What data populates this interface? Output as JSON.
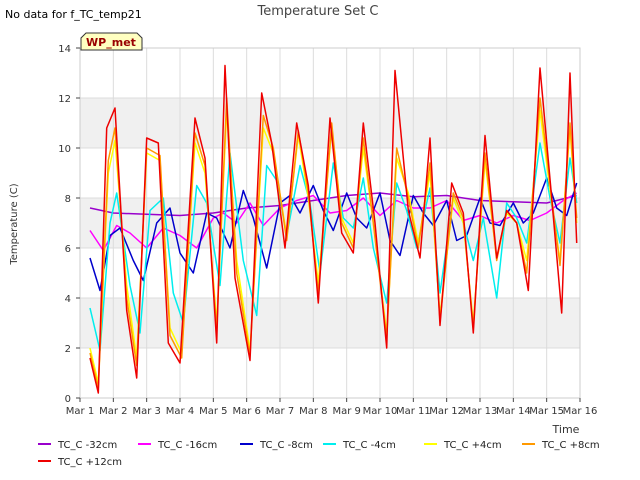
{
  "no_data_note": "No data for f_TC_temp21",
  "site_badge": "WP_met",
  "chart_data": {
    "type": "line",
    "title": "Temperature Set C",
    "xlabel": "Time",
    "ylabel": "Temperature (C)",
    "x_unit": "days since Mar 1",
    "xlim": [
      0,
      15
    ],
    "ylim": [
      0,
      14
    ],
    "x_tick_values": [
      0,
      1,
      2,
      3,
      4,
      5,
      6,
      7,
      8,
      9,
      10,
      11,
      12,
      13,
      14,
      15
    ],
    "x_tick_labels": [
      "Mar 1",
      "Mar 2",
      "Mar 3",
      "Mar 4",
      "Mar 5",
      "Mar 6",
      "Mar 7",
      "Mar 8",
      "Mar 9",
      "Mar 10",
      "Mar 11",
      "Mar 12",
      "Mar 13",
      "Mar 14",
      "Mar 15",
      "Mar 16"
    ],
    "y_tick_values": [
      0,
      2,
      4,
      6,
      8,
      10,
      12,
      14
    ],
    "y_tick_labels": [
      "0",
      "2",
      "4",
      "6",
      "8",
      "10",
      "12",
      "14"
    ],
    "shaded_bands": [
      [
        2,
        4
      ],
      [
        6,
        8
      ],
      [
        10,
        12
      ]
    ],
    "colors": {
      "band": "#f0f0f0",
      "grid": "#dcdcdc",
      "badge_bg": "#ffffc0",
      "badge_text": "#990000"
    },
    "series": [
      {
        "name": "TC_C -32cm",
        "color": "#9900cc",
        "x": [
          0.3,
          1,
          2,
          3,
          4,
          5,
          6,
          7,
          8,
          9,
          10,
          11,
          12,
          13,
          14,
          14.9
        ],
        "y": [
          7.6,
          7.4,
          7.35,
          7.3,
          7.4,
          7.6,
          7.7,
          7.9,
          8.1,
          8.2,
          8.05,
          8.1,
          7.9,
          7.85,
          7.8,
          8.1
        ]
      },
      {
        "name": "TC_C -16cm",
        "color": "#ff00ff",
        "x": [
          0.3,
          0.7,
          1.1,
          1.5,
          2.0,
          2.5,
          3.0,
          3.5,
          4.0,
          4.3,
          4.7,
          5.1,
          5.5,
          6.0,
          6.5,
          7.0,
          7.5,
          8.0,
          8.5,
          9.0,
          9.5,
          10.0,
          10.5,
          11.0,
          11.5,
          12.0,
          12.5,
          13.0,
          13.5,
          14.0,
          14.5,
          14.9
        ],
        "y": [
          6.7,
          5.9,
          6.9,
          6.6,
          6.0,
          6.8,
          6.5,
          6.0,
          7.2,
          7.4,
          7.0,
          7.8,
          6.9,
          7.6,
          7.9,
          8.1,
          7.4,
          7.5,
          8.0,
          7.3,
          7.9,
          7.6,
          7.6,
          7.9,
          7.1,
          7.3,
          7.0,
          7.3,
          7.1,
          7.4,
          7.9,
          8.2
        ]
      },
      {
        "name": "TC_C -8cm",
        "color": "#0000cc",
        "x": [
          0.3,
          0.6,
          0.9,
          1.2,
          1.6,
          1.9,
          2.3,
          2.7,
          3.0,
          3.4,
          3.8,
          4.1,
          4.5,
          4.9,
          5.2,
          5.6,
          6.0,
          6.3,
          6.6,
          7.0,
          7.3,
          7.6,
          8.0,
          8.3,
          8.6,
          9.0,
          9.3,
          9.6,
          10.0,
          10.3,
          10.6,
          11.0,
          11.3,
          11.6,
          12.0,
          12.3,
          12.6,
          13.0,
          13.3,
          13.6,
          14.0,
          14.3,
          14.6,
          14.9
        ],
        "y": [
          5.6,
          4.3,
          6.5,
          6.8,
          5.5,
          4.7,
          7.0,
          7.6,
          5.8,
          5.0,
          7.4,
          7.2,
          6.0,
          8.3,
          7.2,
          5.2,
          7.8,
          8.1,
          7.4,
          8.5,
          7.5,
          6.7,
          8.2,
          7.2,
          6.8,
          8.2,
          6.3,
          5.7,
          8.1,
          7.4,
          6.9,
          7.9,
          6.3,
          6.5,
          8.0,
          7.0,
          6.9,
          7.8,
          7.0,
          7.4,
          8.8,
          7.6,
          7.3,
          8.6
        ]
      },
      {
        "name": "TC_C -4cm",
        "color": "#00eeee",
        "x": [
          0.3,
          0.6,
          0.9,
          1.1,
          1.5,
          1.8,
          2.1,
          2.5,
          2.8,
          3.1,
          3.5,
          3.8,
          4.2,
          4.5,
          4.9,
          5.3,
          5.6,
          5.9,
          6.2,
          6.6,
          6.9,
          7.2,
          7.6,
          7.9,
          8.2,
          8.5,
          8.8,
          9.2,
          9.5,
          9.8,
          10.1,
          10.5,
          10.8,
          11.2,
          11.5,
          11.8,
          12.1,
          12.5,
          12.8,
          13.1,
          13.4,
          13.8,
          14.1,
          14.4,
          14.7,
          14.9
        ],
        "y": [
          3.6,
          1.9,
          7.0,
          8.2,
          4.5,
          2.6,
          7.5,
          8.0,
          4.2,
          3.0,
          8.5,
          7.8,
          4.5,
          9.8,
          5.5,
          3.3,
          9.3,
          8.7,
          6.5,
          9.3,
          7.8,
          5.0,
          9.4,
          7.2,
          6.8,
          8.8,
          6.0,
          3.8,
          8.6,
          7.5,
          6.0,
          8.4,
          4.2,
          8.0,
          7.0,
          5.5,
          7.2,
          4.0,
          7.8,
          7.2,
          6.2,
          10.2,
          8.0,
          6.2,
          9.6,
          7.8
        ]
      },
      {
        "name": "TC_C +4cm",
        "color": "#ffff00",
        "x": [
          0.3,
          0.55,
          0.85,
          1.05,
          1.4,
          1.7,
          2.0,
          2.4,
          2.7,
          3.05,
          3.45,
          3.75,
          4.1,
          4.4,
          4.7,
          5.1,
          5.5,
          5.8,
          6.2,
          6.55,
          6.85,
          7.15,
          7.55,
          7.85,
          8.2,
          8.5,
          8.8,
          9.2,
          9.5,
          9.85,
          10.15,
          10.5,
          10.8,
          11.2,
          11.5,
          11.8,
          12.15,
          12.5,
          12.8,
          13.1,
          13.4,
          13.8,
          14.15,
          14.4,
          14.7,
          14.9
        ],
        "y": [
          2.0,
          0.6,
          9.0,
          10.3,
          4.5,
          1.6,
          9.8,
          9.5,
          2.8,
          1.8,
          10.2,
          9.0,
          3.0,
          11.5,
          5.5,
          1.9,
          10.8,
          9.8,
          6.5,
          10.5,
          8.0,
          4.6,
          10.8,
          7.2,
          6.2,
          10.0,
          7.0,
          2.6,
          9.6,
          8.2,
          6.2,
          9.0,
          3.3,
          8.0,
          7.0,
          3.0,
          9.5,
          5.6,
          7.4,
          7.0,
          5.5,
          11.5,
          7.8,
          5.5,
          10.8,
          7.0
        ]
      },
      {
        "name": "TC_C +8cm",
        "color": "#ff9900",
        "x": [
          0.3,
          0.55,
          0.85,
          1.05,
          1.4,
          1.7,
          2.0,
          2.4,
          2.7,
          3.05,
          3.45,
          3.75,
          4.1,
          4.4,
          4.7,
          5.1,
          5.5,
          5.8,
          6.2,
          6.55,
          6.85,
          7.15,
          7.55,
          7.85,
          8.2,
          8.5,
          8.8,
          9.2,
          9.5,
          9.85,
          10.15,
          10.5,
          10.8,
          11.2,
          11.5,
          11.8,
          12.15,
          12.5,
          12.8,
          13.1,
          13.4,
          13.8,
          14.15,
          14.4,
          14.7,
          14.9
        ],
        "y": [
          1.8,
          0.4,
          9.5,
          10.8,
          4.0,
          1.3,
          10.0,
          9.7,
          2.5,
          1.6,
          10.6,
          9.3,
          2.7,
          12.0,
          5.0,
          1.7,
          11.3,
          10.0,
          6.3,
          10.7,
          8.2,
          4.2,
          11.0,
          7.0,
          6.0,
          10.4,
          7.0,
          2.4,
          10.0,
          8.0,
          6.0,
          9.4,
          3.1,
          8.2,
          7.2,
          2.8,
          9.8,
          5.5,
          7.5,
          7.0,
          5.0,
          12.0,
          8.0,
          5.3,
          11.0,
          7.2
        ]
      },
      {
        "name": "TC_C +12cm",
        "color": "#ee0000",
        "x": [
          0.3,
          0.55,
          0.8,
          1.05,
          1.4,
          1.7,
          2.0,
          2.35,
          2.65,
          3.0,
          3.45,
          3.75,
          4.1,
          4.35,
          4.65,
          5.1,
          5.45,
          5.75,
          6.15,
          6.5,
          6.85,
          7.15,
          7.5,
          7.85,
          8.2,
          8.5,
          8.85,
          9.2,
          9.45,
          9.85,
          10.2,
          10.5,
          10.8,
          11.15,
          11.5,
          11.8,
          12.15,
          12.5,
          12.8,
          13.1,
          13.45,
          13.8,
          14.15,
          14.45,
          14.7,
          14.9
        ],
        "y": [
          1.6,
          0.2,
          10.8,
          11.6,
          3.5,
          0.8,
          10.4,
          10.2,
          2.2,
          1.4,
          11.2,
          9.6,
          2.2,
          13.3,
          4.8,
          1.5,
          12.2,
          10.2,
          6.0,
          11.0,
          8.5,
          3.8,
          11.2,
          6.6,
          5.8,
          11.0,
          7.0,
          2.0,
          13.1,
          7.5,
          5.6,
          10.4,
          2.9,
          8.6,
          7.4,
          2.6,
          10.5,
          5.6,
          7.5,
          7.0,
          4.3,
          13.2,
          8.0,
          3.4,
          13.0,
          6.2
        ]
      }
    ]
  }
}
